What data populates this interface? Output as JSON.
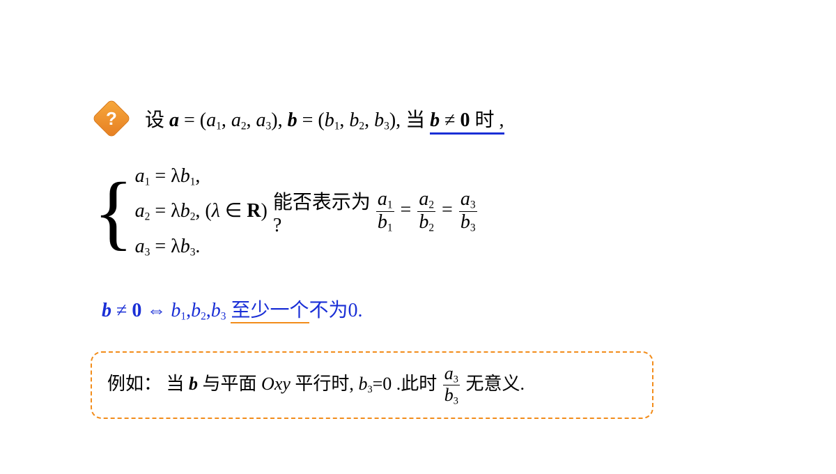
{
  "colors": {
    "text": "#000000",
    "accent_blue": "#1a2fd6",
    "accent_orange": "#f28c1a",
    "diamond_gradient_from": "#f7a93c",
    "diamond_gradient_to": "#e67e22",
    "background": "#ffffff"
  },
  "icon": {
    "question_mark": "?"
  },
  "line1": {
    "set_word": "设 ",
    "a": "a",
    "eq": " = (",
    "a1": "a",
    "s1": "1",
    "comma1": ",",
    "a2": "a",
    "s2": "2",
    "comma2": ",",
    "a3": "a",
    "s3": "3",
    "close": "),",
    "b": "b",
    "beq": " = (",
    "b1": "b",
    "bs1": "1",
    "bcomma1": ",",
    "b2": "b",
    "bs2": "2",
    "bcomma2": ",",
    "b3": "b",
    "bs3": "3",
    "bclose": "), ",
    "when": "当 ",
    "b_neq": "b",
    "neq": " ≠ ",
    "zero": "0",
    "shi": " 时 ,"
  },
  "system": {
    "row1_lhs": "a",
    "row1_s": "1",
    "row1_eq": " = λ",
    "row1_rhs": "b",
    "row1_rs": "1",
    "row1_end": ",",
    "row2_lhs": "a",
    "row2_s": "2",
    "row2_eq": " = λ",
    "row2_rhs": "b",
    "row2_rs": "2",
    "row2_end": ",",
    "row3_lhs": "a",
    "row3_s": "3",
    "row3_eq": " = λ",
    "row3_rhs": "b",
    "row3_rs": "3",
    "row3_end": ".",
    "cond_open": "(",
    "lambda": "λ",
    "in": " ∈ ",
    "R": "R",
    "cond_close": ")"
  },
  "question": {
    "text1": "能否表示为 ",
    "qm": "?",
    "eq": " = ",
    "a": "a",
    "b": "b",
    "s1": "1",
    "s2": "2",
    "s3": "3"
  },
  "line3": {
    "b": "b",
    "neq": " ≠ ",
    "zero": "0",
    "iff": " ⇔ ",
    "blist_b": "b",
    "s1": "1",
    "c1": ",",
    "s2": "2",
    "c2": ",",
    "s3": "3",
    "at_least": "至少一个",
    "rest": "不为",
    "zero2": "0",
    "period": "."
  },
  "example": {
    "label": "例如：",
    "dang": "当",
    "b": "b",
    "yu": " 与平面",
    "O": "O",
    "xy": "xy",
    "pingxing": " 平行时, ",
    "b3v": "b",
    "b3s": "3",
    "eq0": "=0",
    "cishi": " .此时",
    "a": "a",
    "s3": "3",
    "bden": "b",
    "bden_s": "3",
    "meaning": " 无意义."
  }
}
